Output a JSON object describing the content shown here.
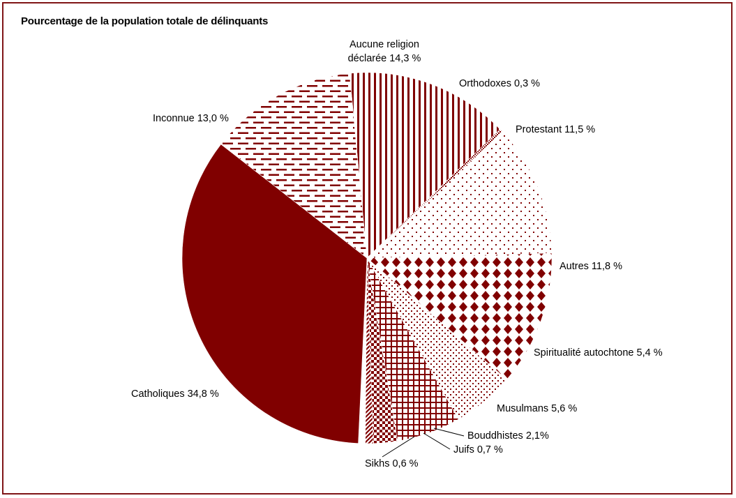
{
  "chart_data": {
    "type": "pie",
    "title": "Pourcentage de la population totale de délinquants",
    "colors": {
      "primary": "#800000",
      "background": "#ffffff",
      "border": "#7f1416"
    },
    "slices": [
      {
        "label": "Aucune religion déclarée",
        "label_lines": [
          "Aucune religion",
          "déclarée 14,3 %"
        ],
        "value": 14.3,
        "pattern": "vertical-lines"
      },
      {
        "label": "Orthodoxes",
        "label_lines": [
          "Orthodoxes 0,3 %"
        ],
        "value": 0.3,
        "pattern": "dense-hatch"
      },
      {
        "label": "Protestant",
        "label_lines": [
          "Protestant 11,5 %"
        ],
        "value": 11.5,
        "pattern": "sparse-dots"
      },
      {
        "label": "Autres",
        "label_lines": [
          "Autres 11,8 %"
        ],
        "value": 11.8,
        "pattern": "diamonds"
      },
      {
        "label": "Spiritualité autochtone",
        "label_lines": [
          "Spiritualité autochtone 5,4 %"
        ],
        "value": 5.4,
        "pattern": "small-dots"
      },
      {
        "label": "Musulmans",
        "label_lines": [
          "Musulmans  5,6 %"
        ],
        "value": 5.6,
        "pattern": "grid"
      },
      {
        "label": "Bouddhistes",
        "label_lines": [
          "Bouddhistes 2,1%"
        ],
        "value": 2.1,
        "pattern": "checker"
      },
      {
        "label": "Juifs",
        "label_lines": [
          "Juifs 0,7 %"
        ],
        "value": 0.7,
        "pattern": "diagonal"
      },
      {
        "label": "Sikhs",
        "label_lines": [
          "Sikhs 0,6 %"
        ],
        "value": 0.6,
        "pattern": "white"
      },
      {
        "label": "Catholiques",
        "label_lines": [
          "Catholiques 34,8 %"
        ],
        "value": 34.8,
        "pattern": "solid"
      },
      {
        "label": "Inconnue",
        "label_lines": [
          "Inconnue 13,0 %"
        ],
        "value": 13.0,
        "pattern": "horizontal-dashes"
      }
    ]
  }
}
